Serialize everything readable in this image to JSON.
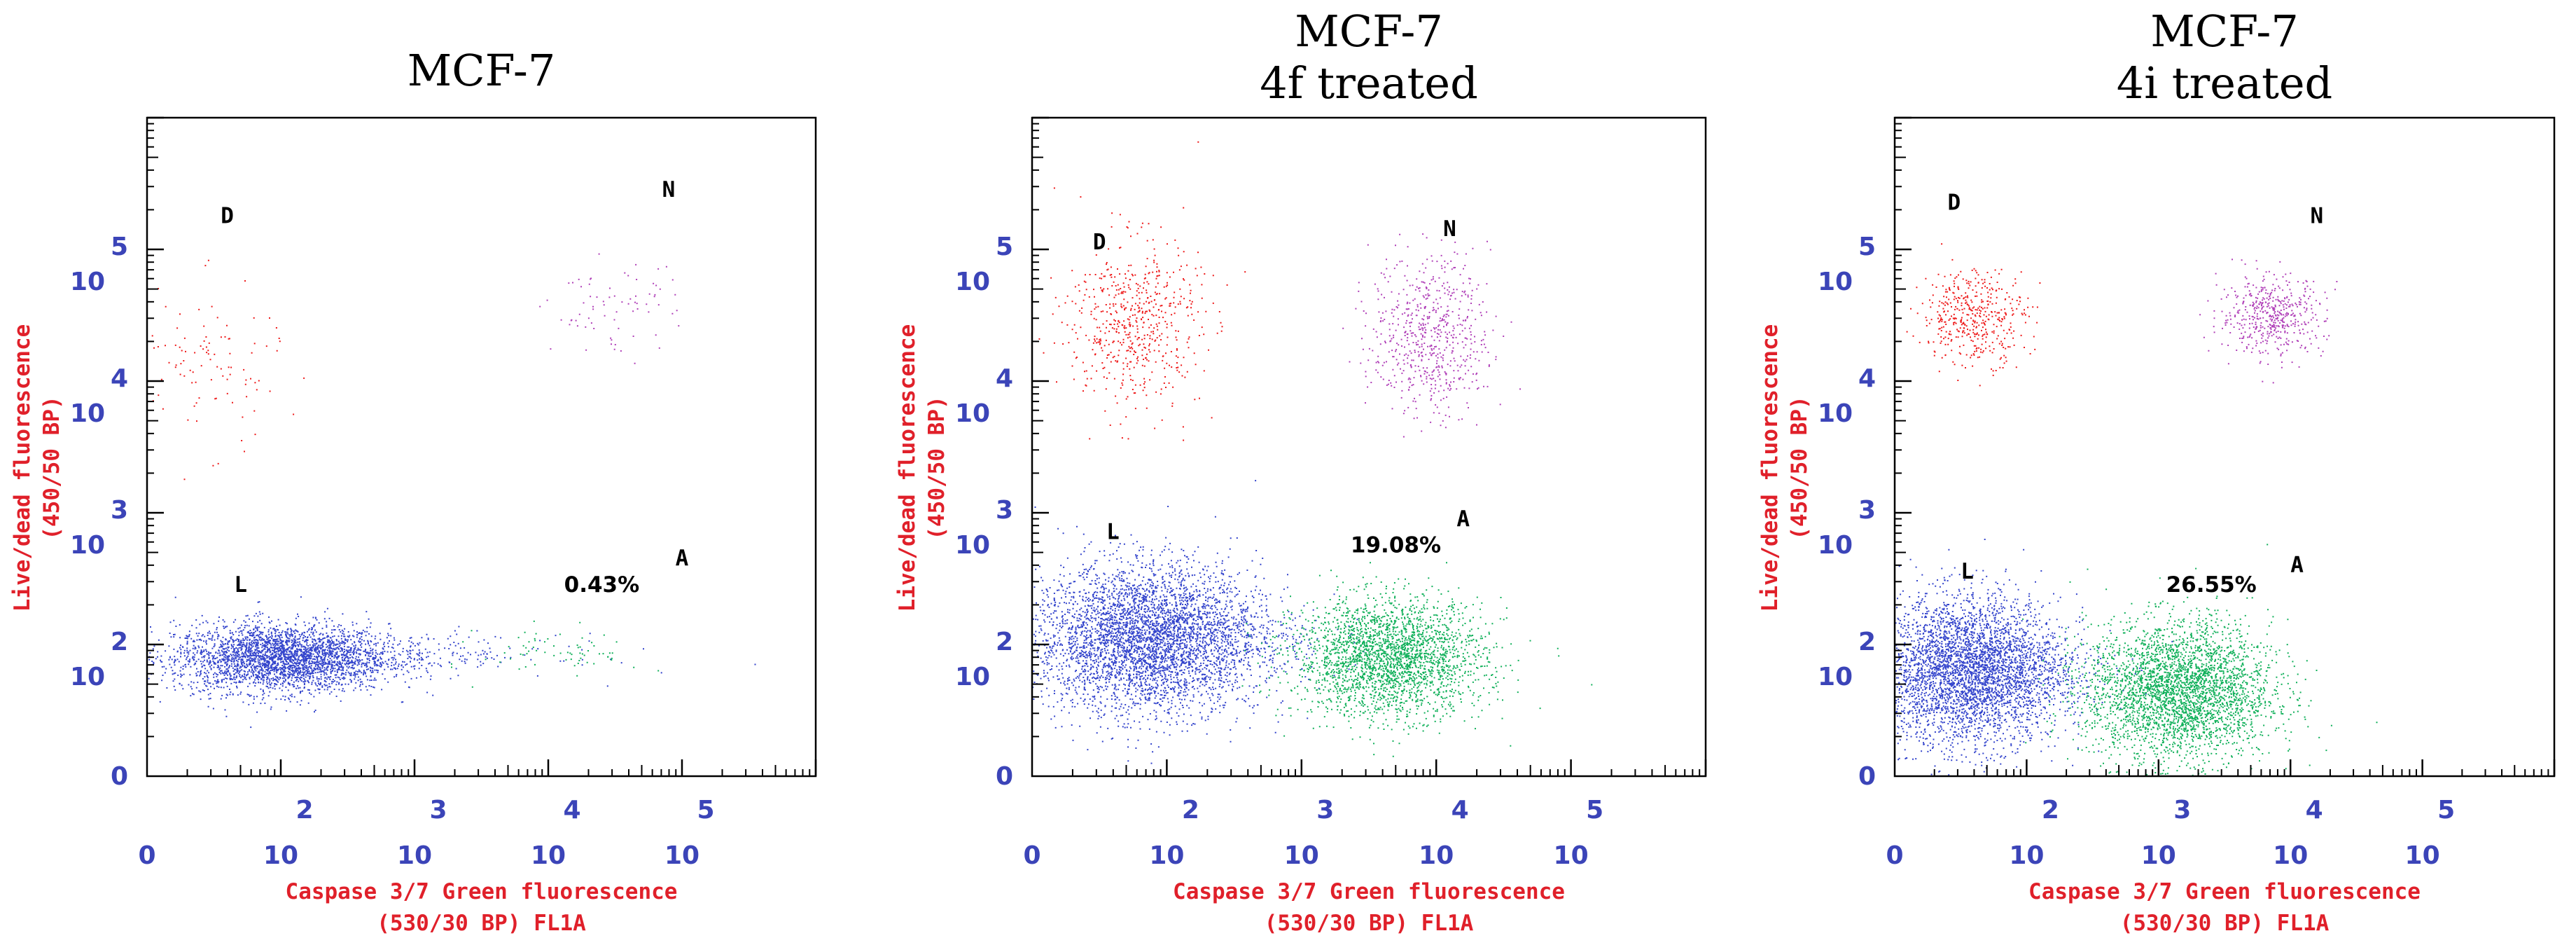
{
  "colors": {
    "tick": "#3b44b8",
    "label": "#e0202a",
    "live": "#3344cc",
    "apoptotic": "#10b05a",
    "dead": "#ee1a1a",
    "necrotic": "#b040b8",
    "frame": "#000000"
  },
  "chart_data": [
    {
      "type": "scatter",
      "title_lines": [
        "MCF-7"
      ],
      "xlabel_lines": [
        "Caspase 3/7 Green fluorescence",
        "(530/30 BP) FL1A"
      ],
      "ylabel_lines": [
        "Live/dead fluorescence",
        "(450/50 BP)"
      ],
      "xlim": [
        0,
        5
      ],
      "ylim": [
        0,
        5
      ],
      "x_ticks": [
        {
          "value": 0,
          "base": "0",
          "exp": ""
        },
        {
          "value": 1,
          "base": "10",
          "exp": "2"
        },
        {
          "value": 2,
          "base": "10",
          "exp": "3"
        },
        {
          "value": 3,
          "base": "10",
          "exp": "4"
        },
        {
          "value": 4,
          "base": "10",
          "exp": "5"
        }
      ],
      "y_ticks": [
        {
          "value": 0,
          "base": "0",
          "exp": ""
        },
        {
          "value": 1,
          "base": "10",
          "exp": "2"
        },
        {
          "value": 2,
          "base": "10",
          "exp": "3"
        },
        {
          "value": 3,
          "base": "10",
          "exp": "4"
        },
        {
          "value": 4,
          "base": "10",
          "exp": "5"
        }
      ],
      "quadrants": [
        {
          "label": "D",
          "x": 0.6,
          "y": 4.2
        },
        {
          "label": "N",
          "x": 3.9,
          "y": 4.4
        },
        {
          "label": "L",
          "x": 0.7,
          "y": 1.4
        },
        {
          "label": "A",
          "x": 4.0,
          "y": 1.6
        }
      ],
      "percentage": {
        "text": "0.43%",
        "x": 3.4,
        "y": 1.4
      },
      "populations": [
        {
          "name": "live",
          "count": 3000,
          "cx": 1.0,
          "cy": 0.9,
          "sx": 0.4,
          "sy": 0.13,
          "tail": [
            {
              "x": 2.6,
              "y": 0.95,
              "count": 300
            }
          ]
        },
        {
          "name": "apoptotic",
          "count": 70,
          "cx": 3.1,
          "cy": 0.95,
          "sx": 0.3,
          "sy": 0.1,
          "tail": []
        },
        {
          "name": "dead",
          "count": 110,
          "cx": 0.4,
          "cy": 3.1,
          "sx": 0.3,
          "sy": 0.3,
          "tail": []
        },
        {
          "name": "necrotic",
          "count": 75,
          "cx": 3.5,
          "cy": 3.55,
          "sx": 0.25,
          "sy": 0.17,
          "tail": []
        }
      ]
    },
    {
      "type": "scatter",
      "title_lines": [
        "MCF-7",
        "4f treated"
      ],
      "xlabel_lines": [
        "Caspase 3/7 Green fluorescence",
        "(530/30 BP) FL1A"
      ],
      "ylabel_lines": [
        "Live/dead fluorescence",
        "(450/50 BP)"
      ],
      "xlim": [
        0,
        5
      ],
      "ylim": [
        0,
        5
      ],
      "x_ticks": [
        {
          "value": 0,
          "base": "0",
          "exp": ""
        },
        {
          "value": 1,
          "base": "10",
          "exp": "2"
        },
        {
          "value": 2,
          "base": "10",
          "exp": "3"
        },
        {
          "value": 3,
          "base": "10",
          "exp": "4"
        },
        {
          "value": 4,
          "base": "10",
          "exp": "5"
        }
      ],
      "y_ticks": [
        {
          "value": 0,
          "base": "0",
          "exp": ""
        },
        {
          "value": 1,
          "base": "10",
          "exp": "2"
        },
        {
          "value": 2,
          "base": "10",
          "exp": "3"
        },
        {
          "value": 3,
          "base": "10",
          "exp": "4"
        },
        {
          "value": 4,
          "base": "10",
          "exp": "5"
        }
      ],
      "quadrants": [
        {
          "label": "D",
          "x": 0.5,
          "y": 4.0
        },
        {
          "label": "N",
          "x": 3.1,
          "y": 4.1
        },
        {
          "label": "L",
          "x": 0.6,
          "y": 1.8
        },
        {
          "label": "A",
          "x": 3.2,
          "y": 1.9
        }
      ],
      "percentage": {
        "text": "19.08%",
        "x": 2.7,
        "y": 1.7
      },
      "populations": [
        {
          "name": "live",
          "count": 4200,
          "cx": 0.85,
          "cy": 1.05,
          "sx": 0.42,
          "sy": 0.28,
          "tail": [
            {
              "x": 1.9,
              "y": 1.05,
              "count": 300
            }
          ]
        },
        {
          "name": "apoptotic",
          "count": 2600,
          "cx": 2.65,
          "cy": 0.9,
          "sx": 0.35,
          "sy": 0.22,
          "tail": []
        },
        {
          "name": "dead",
          "count": 600,
          "cx": 0.75,
          "cy": 3.45,
          "sx": 0.25,
          "sy": 0.32,
          "tail": []
        },
        {
          "name": "necrotic",
          "count": 650,
          "cx": 2.95,
          "cy": 3.35,
          "sx": 0.22,
          "sy": 0.3,
          "tail": []
        }
      ]
    },
    {
      "type": "scatter",
      "title_lines": [
        "MCF-7",
        "4i treated"
      ],
      "xlabel_lines": [
        "Caspase 3/7 Green fluorescence",
        "(530/30 BP) FL1A"
      ],
      "ylabel_lines": [
        "Live/dead fluorescence",
        "(450/50 BP)"
      ],
      "xlim": [
        0,
        5
      ],
      "ylim": [
        0,
        5
      ],
      "x_ticks": [
        {
          "value": 0,
          "base": "0",
          "exp": ""
        },
        {
          "value": 1,
          "base": "10",
          "exp": "2"
        },
        {
          "value": 2,
          "base": "10",
          "exp": "3"
        },
        {
          "value": 3,
          "base": "10",
          "exp": "4"
        },
        {
          "value": 4,
          "base": "10",
          "exp": "5"
        }
      ],
      "y_ticks": [
        {
          "value": 0,
          "base": "0",
          "exp": ""
        },
        {
          "value": 1,
          "base": "10",
          "exp": "2"
        },
        {
          "value": 2,
          "base": "10",
          "exp": "3"
        },
        {
          "value": 3,
          "base": "10",
          "exp": "4"
        },
        {
          "value": 4,
          "base": "10",
          "exp": "5"
        }
      ],
      "quadrants": [
        {
          "label": "D",
          "x": 0.45,
          "y": 4.3
        },
        {
          "label": "N",
          "x": 3.2,
          "y": 4.2
        },
        {
          "label": "L",
          "x": 0.55,
          "y": 1.5
        },
        {
          "label": "A",
          "x": 3.05,
          "y": 1.55
        }
      ],
      "percentage": {
        "text": "26.55%",
        "x": 2.4,
        "y": 1.4
      },
      "populations": [
        {
          "name": "live",
          "count": 3800,
          "cx": 0.55,
          "cy": 0.8,
          "sx": 0.35,
          "sy": 0.28,
          "tail": [
            {
              "x": 1.4,
              "y": 0.85,
              "count": 300
            }
          ]
        },
        {
          "name": "apoptotic",
          "count": 3300,
          "cx": 2.15,
          "cy": 0.65,
          "sx": 0.35,
          "sy": 0.26,
          "tail": []
        },
        {
          "name": "dead",
          "count": 450,
          "cx": 0.6,
          "cy": 3.5,
          "sx": 0.2,
          "sy": 0.18,
          "tail": []
        },
        {
          "name": "necrotic",
          "count": 500,
          "cx": 2.85,
          "cy": 3.5,
          "sx": 0.2,
          "sy": 0.15,
          "tail": []
        }
      ]
    }
  ]
}
